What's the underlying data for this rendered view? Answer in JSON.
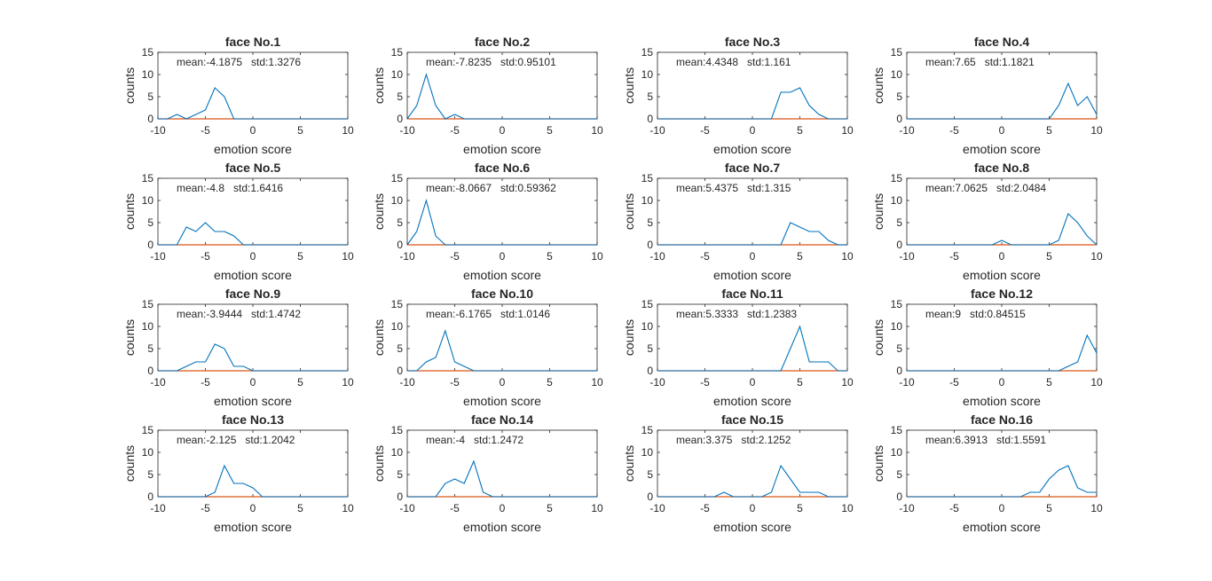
{
  "colors": {
    "series": "#0072BD",
    "baseline": "#D95319",
    "axis": "#262626"
  },
  "chart_data": [
    {
      "type": "line",
      "title": "face No.1",
      "xlabel": "emotion score",
      "ylabel": "counts",
      "xlim": [
        -10,
        10
      ],
      "ylim": [
        0,
        15
      ],
      "xticks": [
        -10,
        -5,
        0,
        5,
        10
      ],
      "yticks": [
        0,
        5,
        10,
        15
      ],
      "annotation": "mean:-4.1875   std:1.3276",
      "series": [
        {
          "x": [
            -10,
            -9,
            -8,
            -7,
            -6,
            -5,
            -4,
            -3,
            -2,
            -1,
            0,
            1,
            2,
            3,
            4,
            5,
            6,
            7,
            8,
            9,
            10
          ],
          "values": [
            0,
            0,
            1,
            0,
            1,
            2,
            7,
            5,
            0,
            0,
            0,
            0,
            0,
            0,
            0,
            0,
            0,
            0,
            0,
            0,
            0
          ]
        }
      ]
    },
    {
      "type": "line",
      "title": "face No.2",
      "xlabel": "emotion score",
      "ylabel": "counts",
      "xlim": [
        -10,
        10
      ],
      "ylim": [
        0,
        15
      ],
      "xticks": [
        -10,
        -5,
        0,
        5,
        10
      ],
      "yticks": [
        0,
        5,
        10,
        15
      ],
      "annotation": "mean:-7.8235   std:0.95101",
      "series": [
        {
          "x": [
            -10,
            -9,
            -8,
            -7,
            -6,
            -5,
            -4,
            -3,
            -2,
            -1,
            0,
            1,
            2,
            3,
            4,
            5,
            6,
            7,
            8,
            9,
            10
          ],
          "values": [
            0,
            3,
            10,
            3,
            0,
            1,
            0,
            0,
            0,
            0,
            0,
            0,
            0,
            0,
            0,
            0,
            0,
            0,
            0,
            0,
            0
          ]
        }
      ]
    },
    {
      "type": "line",
      "title": "face No.3",
      "xlabel": "emotion score",
      "ylabel": "counts",
      "xlim": [
        -10,
        10
      ],
      "ylim": [
        0,
        15
      ],
      "xticks": [
        -10,
        -5,
        0,
        5,
        10
      ],
      "yticks": [
        0,
        5,
        10,
        15
      ],
      "annotation": "mean:4.4348   std:1.161",
      "series": [
        {
          "x": [
            -10,
            -9,
            -8,
            -7,
            -6,
            -5,
            -4,
            -3,
            -2,
            -1,
            0,
            1,
            2,
            3,
            4,
            5,
            6,
            7,
            8,
            9,
            10
          ],
          "values": [
            0,
            0,
            0,
            0,
            0,
            0,
            0,
            0,
            0,
            0,
            0,
            0,
            0,
            6,
            6,
            7,
            3,
            1,
            0,
            0,
            0
          ]
        }
      ]
    },
    {
      "type": "line",
      "title": "face No.4",
      "xlabel": "emotion score",
      "ylabel": "counts",
      "xlim": [
        -10,
        10
      ],
      "ylim": [
        0,
        15
      ],
      "xticks": [
        -10,
        -5,
        0,
        5,
        10
      ],
      "yticks": [
        0,
        5,
        10,
        15
      ],
      "annotation": "mean:7.65   std:1.1821",
      "series": [
        {
          "x": [
            -10,
            -9,
            -8,
            -7,
            -6,
            -5,
            -4,
            -3,
            -2,
            -1,
            0,
            1,
            2,
            3,
            4,
            5,
            6,
            7,
            8,
            9,
            10
          ],
          "values": [
            0,
            0,
            0,
            0,
            0,
            0,
            0,
            0,
            0,
            0,
            0,
            0,
            0,
            0,
            0,
            0,
            3,
            8,
            3,
            5,
            1
          ]
        }
      ]
    },
    {
      "type": "line",
      "title": "face No.5",
      "xlabel": "emotion score",
      "ylabel": "counts",
      "xlim": [
        -10,
        10
      ],
      "ylim": [
        0,
        15
      ],
      "xticks": [
        -10,
        -5,
        0,
        5,
        10
      ],
      "yticks": [
        0,
        5,
        10,
        15
      ],
      "annotation": "mean:-4.8   std:1.6416",
      "series": [
        {
          "x": [
            -10,
            -9,
            -8,
            -7,
            -6,
            -5,
            -4,
            -3,
            -2,
            -1,
            0,
            1,
            2,
            3,
            4,
            5,
            6,
            7,
            8,
            9,
            10
          ],
          "values": [
            0,
            0,
            0,
            4,
            3,
            5,
            3,
            3,
            2,
            0,
            0,
            0,
            0,
            0,
            0,
            0,
            0,
            0,
            0,
            0,
            0
          ]
        }
      ]
    },
    {
      "type": "line",
      "title": "face No.6",
      "xlabel": "emotion score",
      "ylabel": "counts",
      "xlim": [
        -10,
        10
      ],
      "ylim": [
        0,
        15
      ],
      "xticks": [
        -10,
        -5,
        0,
        5,
        10
      ],
      "yticks": [
        0,
        5,
        10,
        15
      ],
      "annotation": "mean:-8.0667   std:0.59362",
      "series": [
        {
          "x": [
            -10,
            -9,
            -8,
            -7,
            -6,
            -5,
            -4,
            -3,
            -2,
            -1,
            0,
            1,
            2,
            3,
            4,
            5,
            6,
            7,
            8,
            9,
            10
          ],
          "values": [
            0,
            3,
            10,
            2,
            0,
            0,
            0,
            0,
            0,
            0,
            0,
            0,
            0,
            0,
            0,
            0,
            0,
            0,
            0,
            0,
            0
          ]
        }
      ]
    },
    {
      "type": "line",
      "title": "face No.7",
      "xlabel": "emotion score",
      "ylabel": "counts",
      "xlim": [
        -10,
        10
      ],
      "ylim": [
        0,
        15
      ],
      "xticks": [
        -10,
        -5,
        0,
        5,
        10
      ],
      "yticks": [
        0,
        5,
        10,
        15
      ],
      "annotation": "mean:5.4375   std:1.315",
      "series": [
        {
          "x": [
            -10,
            -9,
            -8,
            -7,
            -6,
            -5,
            -4,
            -3,
            -2,
            -1,
            0,
            1,
            2,
            3,
            4,
            5,
            6,
            7,
            8,
            9,
            10
          ],
          "values": [
            0,
            0,
            0,
            0,
            0,
            0,
            0,
            0,
            0,
            0,
            0,
            0,
            0,
            0,
            5,
            4,
            3,
            3,
            1,
            0,
            0
          ]
        }
      ]
    },
    {
      "type": "line",
      "title": "face No.8",
      "xlabel": "emotion score",
      "ylabel": "counts",
      "xlim": [
        -10,
        10
      ],
      "ylim": [
        0,
        15
      ],
      "xticks": [
        -10,
        -5,
        0,
        5,
        10
      ],
      "yticks": [
        0,
        5,
        10,
        15
      ],
      "annotation": "mean:7.0625   std:2.0484",
      "series": [
        {
          "x": [
            -10,
            -9,
            -8,
            -7,
            -6,
            -5,
            -4,
            -3,
            -2,
            -1,
            0,
            1,
            2,
            3,
            4,
            5,
            6,
            7,
            8,
            9,
            10
          ],
          "values": [
            0,
            0,
            0,
            0,
            0,
            0,
            0,
            0,
            0,
            0,
            1,
            0,
            0,
            0,
            0,
            0,
            1,
            7,
            5,
            2,
            0
          ]
        }
      ]
    },
    {
      "type": "line",
      "title": "face No.9",
      "xlabel": "emotion score",
      "ylabel": "counts",
      "xlim": [
        -10,
        10
      ],
      "ylim": [
        0,
        15
      ],
      "xticks": [
        -10,
        -5,
        0,
        5,
        10
      ],
      "yticks": [
        0,
        5,
        10,
        15
      ],
      "annotation": "mean:-3.9444   std:1.4742",
      "series": [
        {
          "x": [
            -10,
            -9,
            -8,
            -7,
            -6,
            -5,
            -4,
            -3,
            -2,
            -1,
            0,
            1,
            2,
            3,
            4,
            5,
            6,
            7,
            8,
            9,
            10
          ],
          "values": [
            0,
            0,
            0,
            1,
            2,
            2,
            6,
            5,
            1,
            1,
            0,
            0,
            0,
            0,
            0,
            0,
            0,
            0,
            0,
            0,
            0
          ]
        }
      ]
    },
    {
      "type": "line",
      "title": "face No.10",
      "xlabel": "emotion score",
      "ylabel": "counts",
      "xlim": [
        -10,
        10
      ],
      "ylim": [
        0,
        15
      ],
      "xticks": [
        -10,
        -5,
        0,
        5,
        10
      ],
      "yticks": [
        0,
        5,
        10,
        15
      ],
      "annotation": "mean:-6.1765   std:1.0146",
      "series": [
        {
          "x": [
            -10,
            -9,
            -8,
            -7,
            -6,
            -5,
            -4,
            -3,
            -2,
            -1,
            0,
            1,
            2,
            3,
            4,
            5,
            6,
            7,
            8,
            9,
            10
          ],
          "values": [
            0,
            0,
            2,
            3,
            9,
            2,
            1,
            0,
            0,
            0,
            0,
            0,
            0,
            0,
            0,
            0,
            0,
            0,
            0,
            0,
            0
          ]
        }
      ]
    },
    {
      "type": "line",
      "title": "face No.11",
      "xlabel": "emotion score",
      "ylabel": "counts",
      "xlim": [
        -10,
        10
      ],
      "ylim": [
        0,
        15
      ],
      "xticks": [
        -10,
        -5,
        0,
        5,
        10
      ],
      "yticks": [
        0,
        5,
        10,
        15
      ],
      "annotation": "mean:5.3333   std:1.2383",
      "series": [
        {
          "x": [
            -10,
            -9,
            -8,
            -7,
            -6,
            -5,
            -4,
            -3,
            -2,
            -1,
            0,
            1,
            2,
            3,
            4,
            5,
            6,
            7,
            8,
            9,
            10
          ],
          "values": [
            0,
            0,
            0,
            0,
            0,
            0,
            0,
            0,
            0,
            0,
            0,
            0,
            0,
            0,
            5,
            10,
            2,
            2,
            2,
            0,
            0
          ]
        }
      ]
    },
    {
      "type": "line",
      "title": "face No.12",
      "xlabel": "emotion score",
      "ylabel": "counts",
      "xlim": [
        -10,
        10
      ],
      "ylim": [
        0,
        15
      ],
      "xticks": [
        -10,
        -5,
        0,
        5,
        10
      ],
      "yticks": [
        0,
        5,
        10,
        15
      ],
      "annotation": "mean:9   std:0.84515",
      "series": [
        {
          "x": [
            -10,
            -9,
            -8,
            -7,
            -6,
            -5,
            -4,
            -3,
            -2,
            -1,
            0,
            1,
            2,
            3,
            4,
            5,
            6,
            7,
            8,
            9,
            10
          ],
          "values": [
            0,
            0,
            0,
            0,
            0,
            0,
            0,
            0,
            0,
            0,
            0,
            0,
            0,
            0,
            0,
            0,
            0,
            1,
            2,
            8,
            4
          ]
        }
      ]
    },
    {
      "type": "line",
      "title": "face No.13",
      "xlabel": "emotion score",
      "ylabel": "counts",
      "xlim": [
        -10,
        10
      ],
      "ylim": [
        0,
        15
      ],
      "xticks": [
        -10,
        -5,
        0,
        5,
        10
      ],
      "yticks": [
        0,
        5,
        10,
        15
      ],
      "annotation": "mean:-2.125   std:1.2042",
      "series": [
        {
          "x": [
            -10,
            -9,
            -8,
            -7,
            -6,
            -5,
            -4,
            -3,
            -2,
            -1,
            0,
            1,
            2,
            3,
            4,
            5,
            6,
            7,
            8,
            9,
            10
          ],
          "values": [
            0,
            0,
            0,
            0,
            0,
            0,
            1,
            7,
            3,
            3,
            2,
            0,
            0,
            0,
            0,
            0,
            0,
            0,
            0,
            0,
            0
          ]
        }
      ]
    },
    {
      "type": "line",
      "title": "face No.14",
      "xlabel": "emotion score",
      "ylabel": "counts",
      "xlim": [
        -10,
        10
      ],
      "ylim": [
        0,
        15
      ],
      "xticks": [
        -10,
        -5,
        0,
        5,
        10
      ],
      "yticks": [
        0,
        5,
        10,
        15
      ],
      "annotation": "mean:-4   std:1.2472",
      "series": [
        {
          "x": [
            -10,
            -9,
            -8,
            -7,
            -6,
            -5,
            -4,
            -3,
            -2,
            -1,
            0,
            1,
            2,
            3,
            4,
            5,
            6,
            7,
            8,
            9,
            10
          ],
          "values": [
            0,
            0,
            0,
            0,
            3,
            4,
            3,
            8,
            1,
            0,
            0,
            0,
            0,
            0,
            0,
            0,
            0,
            0,
            0,
            0,
            0
          ]
        }
      ]
    },
    {
      "type": "line",
      "title": "face No.15",
      "xlabel": "emotion score",
      "ylabel": "counts",
      "xlim": [
        -10,
        10
      ],
      "ylim": [
        0,
        15
      ],
      "xticks": [
        -10,
        -5,
        0,
        5,
        10
      ],
      "yticks": [
        0,
        5,
        10,
        15
      ],
      "annotation": "mean:3.375   std:2.1252",
      "series": [
        {
          "x": [
            -10,
            -9,
            -8,
            -7,
            -6,
            -5,
            -4,
            -3,
            -2,
            -1,
            0,
            1,
            2,
            3,
            4,
            5,
            6,
            7,
            8,
            9,
            10
          ],
          "values": [
            0,
            0,
            0,
            0,
            0,
            0,
            0,
            1,
            0,
            0,
            0,
            0,
            1,
            7,
            4,
            1,
            1,
            1,
            0,
            0,
            0
          ]
        }
      ]
    },
    {
      "type": "line",
      "title": "face No.16",
      "xlabel": "emotion score",
      "ylabel": "counts",
      "xlim": [
        -10,
        10
      ],
      "ylim": [
        0,
        15
      ],
      "xticks": [
        -10,
        -5,
        0,
        5,
        10
      ],
      "yticks": [
        0,
        5,
        10,
        15
      ],
      "annotation": "mean:6.3913   std:1.5591",
      "series": [
        {
          "x": [
            -10,
            -9,
            -8,
            -7,
            -6,
            -5,
            -4,
            -3,
            -2,
            -1,
            0,
            1,
            2,
            3,
            4,
            5,
            6,
            7,
            8,
            9,
            10
          ],
          "values": [
            0,
            0,
            0,
            0,
            0,
            0,
            0,
            0,
            0,
            0,
            0,
            0,
            0,
            1,
            1,
            4,
            6,
            7,
            2,
            1,
            1
          ]
        }
      ]
    }
  ]
}
